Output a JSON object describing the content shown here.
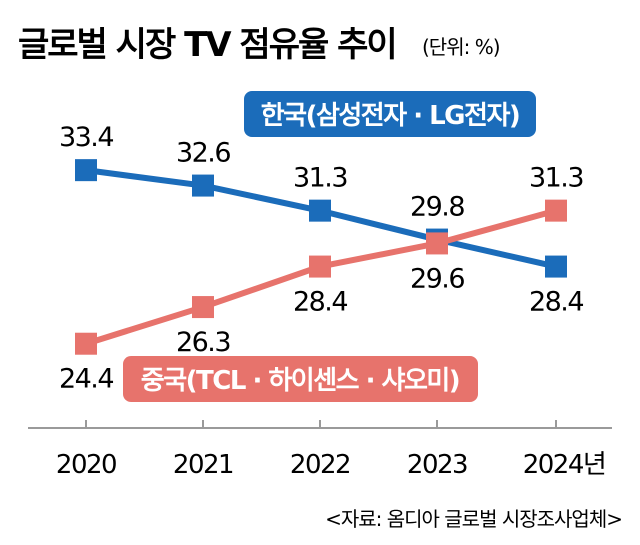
{
  "chart_data": {
    "type": "line",
    "title": "글로벌 시장 TV 점유율 추이",
    "unit": "(단위: %)",
    "categories": [
      "2020",
      "2021",
      "2022",
      "2023",
      "2024년"
    ],
    "series": [
      {
        "name": "한국(삼성전자 · LG전자)",
        "color": "#1b6cba",
        "values": [
          33.4,
          32.6,
          31.3,
          29.8,
          28.4
        ],
        "labels": [
          "33.4",
          "32.6",
          "31.3",
          "29.8",
          "28.4"
        ]
      },
      {
        "name": "중국(TCL · 하이센스 · 샤오미)",
        "color": "#e7736c",
        "values": [
          24.4,
          26.3,
          28.4,
          29.6,
          31.3
        ],
        "labels": [
          "24.4",
          "26.3",
          "28.4",
          "29.6",
          "31.3"
        ]
      }
    ],
    "ylim": [
      22,
      36
    ],
    "source": "<자료: 옴디아 글로벌 시장조사업체>"
  }
}
